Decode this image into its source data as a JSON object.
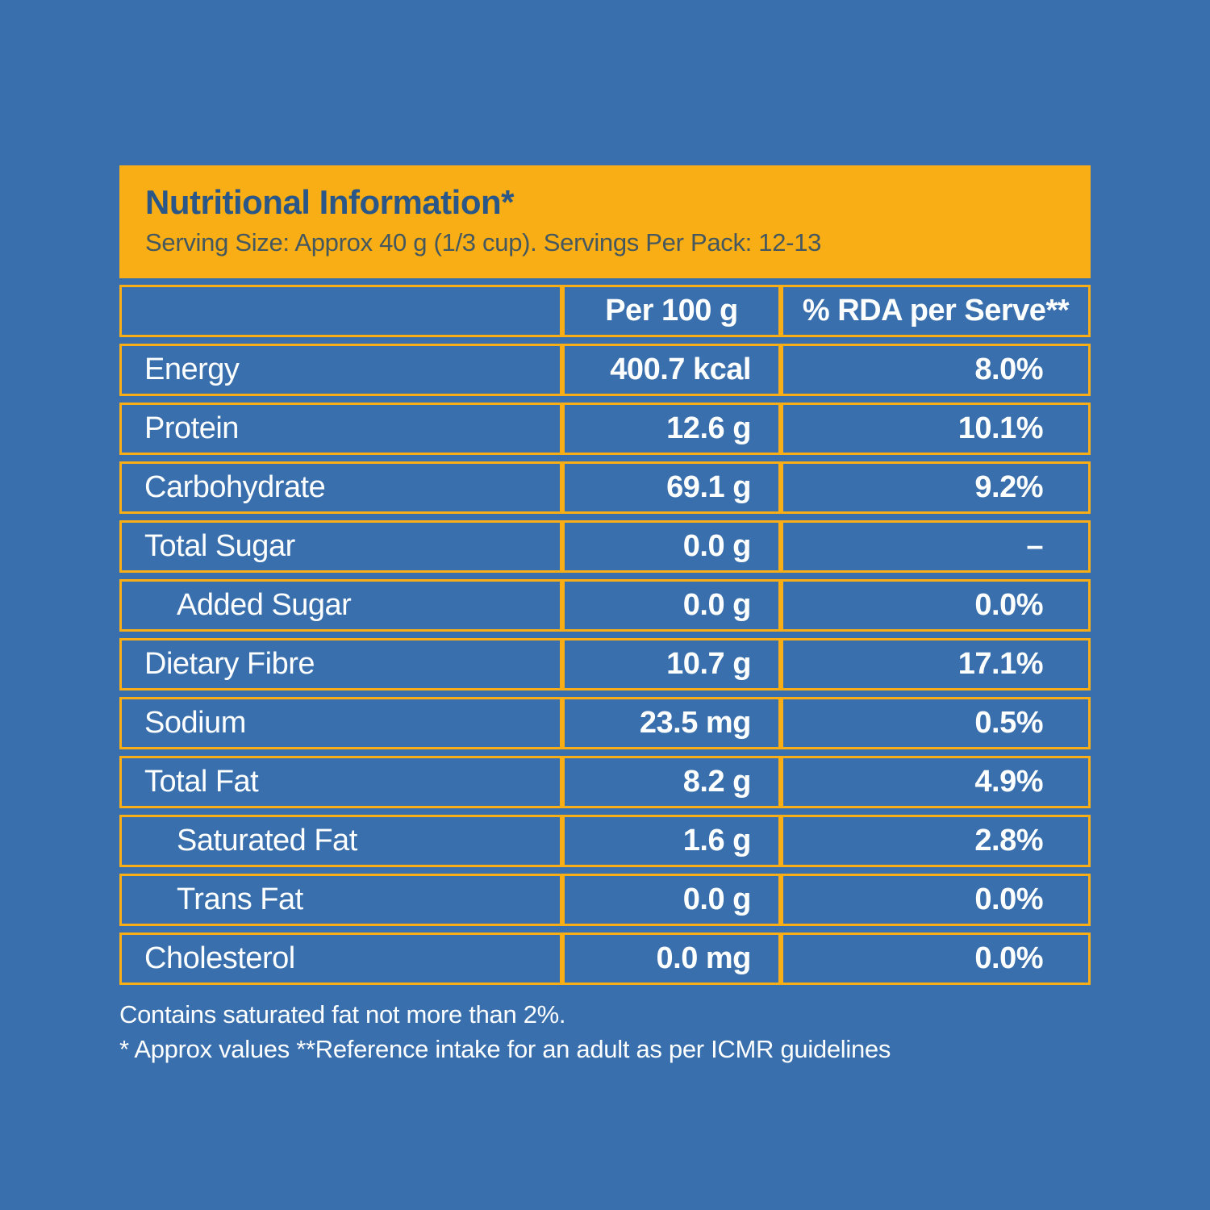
{
  "colors": {
    "background_blue": "#3A6FAE",
    "accent_yellow": "#F8AE14",
    "title_blue": "#2A5788",
    "subtitle_gray": "#46585F",
    "text_white": "#FDFEFE"
  },
  "header": {
    "title": "Nutritional Information*",
    "subtitle": "Serving Size: Approx 40 g (1/3 cup). Servings Per Pack: 12-13"
  },
  "table": {
    "columns": {
      "col1": "",
      "col2": "Per 100 g",
      "col3": "% RDA per Serve**"
    },
    "rows": [
      {
        "label": "Energy",
        "per_100g": "400.7 kcal",
        "rda_per_serve": "8.0%",
        "indent": false
      },
      {
        "label": "Protein",
        "per_100g": "12.6 g",
        "rda_per_serve": "10.1%",
        "indent": false
      },
      {
        "label": "Carbohydrate",
        "per_100g": "69.1 g",
        "rda_per_serve": "9.2%",
        "indent": false
      },
      {
        "label": "Total Sugar",
        "per_100g": "0.0 g",
        "rda_per_serve": "–",
        "indent": false
      },
      {
        "label": "Added Sugar",
        "per_100g": "0.0 g",
        "rda_per_serve": "0.0%",
        "indent": true
      },
      {
        "label": "Dietary Fibre",
        "per_100g": "10.7 g",
        "rda_per_serve": "17.1%",
        "indent": false
      },
      {
        "label": "Sodium",
        "per_100g": "23.5 mg",
        "rda_per_serve": "0.5%",
        "indent": false
      },
      {
        "label": "Total Fat",
        "per_100g": "8.2 g",
        "rda_per_serve": "4.9%",
        "indent": false
      },
      {
        "label": "Saturated Fat",
        "per_100g": "1.6 g",
        "rda_per_serve": "2.8%",
        "indent": true
      },
      {
        "label": "Trans Fat",
        "per_100g": "0.0 g",
        "rda_per_serve": "0.0%",
        "indent": true
      },
      {
        "label": "Cholesterol",
        "per_100g": "0.0 mg",
        "rda_per_serve": "0.0%",
        "indent": false
      }
    ]
  },
  "footnotes": {
    "line1": "Contains saturated fat not more than 2%.",
    "line2": "* Approx values **Reference intake for an adult as per ICMR guidelines"
  }
}
